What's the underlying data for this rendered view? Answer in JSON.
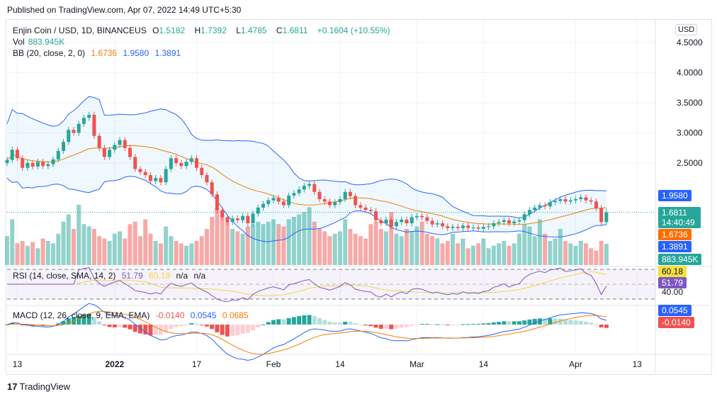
{
  "published": "Published on TradingView.com, Apr 07, 2022 14:49 UTC+5:30",
  "legend": {
    "symbol": "Enjin Coin / USD, 1D, BINANCEUS",
    "o_label": "O",
    "open": "1.5182",
    "h_label": "H",
    "high": "1.7392",
    "l_label": "L",
    "low": "1.4785",
    "c_label": "C",
    "close": "1.6811",
    "change": "+0.1604 (+10.55%)",
    "vol_label": "Vol",
    "vol": "883.945K",
    "bb_label": "BB (20, close, 2, 0)",
    "bb_basis": "1.6736",
    "bb_upper": "1.9580",
    "bb_lower": "1.3891",
    "rsi_label": "RSI (14, close, SMA, 14, 2)",
    "rsi": "51.79",
    "rsi_ma": "60.18",
    "rsi_na1": "n/a",
    "rsi_na2": "n/a",
    "macd_label": "MACD (12, 26, close, 9, EMA, EMA)",
    "macd_hist": "-0.0140",
    "macd": "0.0545",
    "macd_signal": "0.0685"
  },
  "currency": "USD",
  "axis_tags": {
    "bb_upper": "1.9580",
    "price": "1.6811",
    "countdown": "14:40:49",
    "bb_basis": "1.6736",
    "bb_lower": "1.3891",
    "volume": "883.945K",
    "rsi_ma": "60.18",
    "rsi": "51.79",
    "rsi_level": "40.00",
    "macd": "0.0545",
    "macd_hist": "-0.0140"
  },
  "colors": {
    "up": "#26a69a",
    "down": "#ef5350",
    "bb_basis": "#f57c00",
    "bb_band": "#2962ff",
    "rsi": "#7e57c2",
    "rsi_ma": "#f5d547",
    "macd": "#2962ff",
    "signal": "#f57c00"
  },
  "brand": "TradingView",
  "chart_data": {
    "type": "candlestick",
    "title": "Enjin Coin / USD, 1D, BINANCEUS",
    "y_ticks": [
      "4.5000",
      "4.0000",
      "3.5000",
      "3.0000",
      "2.5000"
    ],
    "y_tick_values": [
      4.5,
      4.0,
      3.5,
      3.0,
      2.5
    ],
    "x_ticks": [
      {
        "label": "13",
        "index": 2
      },
      {
        "label": "2022",
        "index": 21
      },
      {
        "label": "17",
        "index": 37
      },
      {
        "label": "Feb",
        "index": 52
      },
      {
        "label": "14",
        "index": 65
      },
      {
        "label": "Mar",
        "index": 80
      },
      {
        "label": "14",
        "index": 93
      },
      {
        "label": "Apr",
        "index": 111
      },
      {
        "label": "13",
        "index": 123
      }
    ],
    "last_candle": {
      "open": 1.5182,
      "high": 1.7392,
      "low": 1.4785,
      "close": 1.6811
    },
    "closes": [
      2.55,
      2.72,
      2.58,
      2.42,
      2.5,
      2.44,
      2.52,
      2.45,
      2.48,
      2.56,
      2.7,
      2.85,
      3.05,
      3.0,
      3.15,
      3.25,
      3.3,
      2.95,
      2.75,
      2.6,
      2.72,
      2.8,
      2.88,
      2.75,
      2.6,
      2.4,
      2.35,
      2.3,
      2.2,
      2.25,
      2.18,
      2.4,
      2.58,
      2.5,
      2.45,
      2.52,
      2.58,
      2.42,
      2.3,
      2.18,
      1.98,
      1.72,
      1.6,
      1.52,
      1.58,
      1.55,
      1.62,
      1.5,
      1.66,
      1.76,
      1.82,
      1.88,
      1.92,
      1.86,
      1.8,
      1.96,
      2.0,
      2.06,
      2.12,
      2.15,
      2.02,
      1.9,
      1.86,
      1.8,
      1.85,
      1.9,
      2.02,
      1.95,
      1.8,
      1.76,
      1.72,
      1.7,
      1.55,
      1.5,
      1.56,
      1.45,
      1.52,
      1.56,
      1.5,
      1.6,
      1.62,
      1.6,
      1.54,
      1.48,
      1.5,
      1.45,
      1.42,
      1.44,
      1.42,
      1.46,
      1.42,
      1.43,
      1.41,
      1.44,
      1.45,
      1.5,
      1.52,
      1.55,
      1.5,
      1.53,
      1.55,
      1.65,
      1.72,
      1.76,
      1.8,
      1.78,
      1.85,
      1.87,
      1.9,
      1.86,
      1.88,
      1.9,
      1.93,
      1.88,
      1.86,
      1.75,
      1.52,
      1.6811
    ],
    "volumes_k": [
      1200,
      1900,
      900,
      1000,
      800,
      950,
      700,
      1100,
      1000,
      900,
      1300,
      1800,
      2100,
      1500,
      2500,
      1700,
      1600,
      1500,
      1200,
      1100,
      1000,
      1300,
      1400,
      1100,
      1700,
      1800,
      1200,
      1900,
      1300,
      1000,
      900,
      1600,
      1200,
      1000,
      900,
      800,
      900,
      1000,
      1200,
      1500,
      2000,
      2400,
      2100,
      1800,
      1500,
      1400,
      1300,
      1600,
      1700,
      1800,
      1700,
      1800,
      1900,
      1700,
      1600,
      1900,
      2000,
      2100,
      2200,
      2400,
      1800,
      1500,
      1400,
      1200,
      1300,
      1400,
      1900,
      1500,
      1300,
      1200,
      1100,
      1700,
      1800,
      1500,
      1400,
      2200,
      1300,
      1200,
      1500,
      1400,
      1600,
      1800,
      1300,
      1200,
      1100,
      900,
      1000,
      1300,
      900,
      1100,
      700,
      800,
      900,
      1100,
      700,
      800,
      900,
      1000,
      800,
      900,
      1300,
      1700,
      1600,
      1200,
      1900,
      1300,
      1000,
      1100,
      1500,
      1000,
      900,
      800,
      1000,
      900,
      700,
      600,
      1000,
      884
    ]
  }
}
